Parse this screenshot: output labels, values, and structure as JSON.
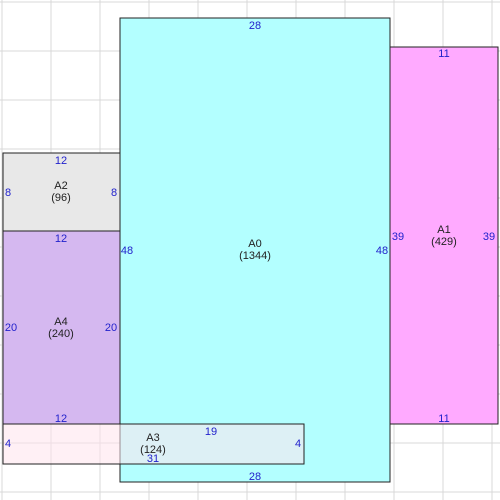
{
  "areas": [
    {
      "id": "A0",
      "label": "A0",
      "area_text": "(1344)",
      "fill": "#b3ffff",
      "dims": {
        "top": "28",
        "bottom": "28",
        "left": "48",
        "right": "48"
      }
    },
    {
      "id": "A1",
      "label": "A1",
      "area_text": "(429)",
      "fill": "#ffaaff",
      "dims": {
        "top": "11",
        "bottom": "11",
        "left": "39",
        "right": "39"
      }
    },
    {
      "id": "A2",
      "label": "A2",
      "area_text": "(96)",
      "fill": "#e8e8e8",
      "dims": {
        "top": "12",
        "bottom": "12",
        "left": "8",
        "right": "8"
      }
    },
    {
      "id": "A4",
      "label": "A4",
      "area_text": "(240)",
      "fill": "#d5b8f0",
      "dims": {
        "top": "12",
        "bottom": "12",
        "left": "20",
        "right": "20"
      }
    },
    {
      "id": "A3",
      "label": "A3",
      "area_text": "(124)",
      "fill": "#ffe4ec",
      "dims": {
        "top": "19",
        "bottom": "31",
        "left": "4",
        "right": "4"
      }
    }
  ],
  "colors": {
    "grid": "#d8d8d8",
    "border": "#222222",
    "dimension_text": "#2222cc"
  }
}
